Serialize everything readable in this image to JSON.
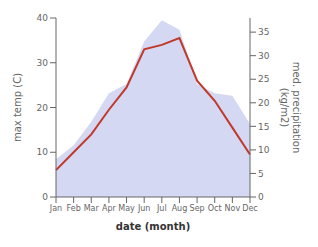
{
  "chart_data": {
    "type": "line",
    "categories": [
      "Jan",
      "Feb",
      "Mar",
      "Apr",
      "May",
      "Jun",
      "Jul",
      "Aug",
      "Sep",
      "Oct",
      "Nov",
      "Dec"
    ],
    "series": [
      {
        "type": "area",
        "color": "#b0b8e8",
        "axis": "y2",
        "values": [
          8.0,
          11.0,
          16.0,
          22.0,
          24.0,
          33.0,
          37.5,
          35.5,
          24.0,
          22.0,
          21.5,
          15.5
        ]
      },
      {
        "type": "line",
        "color": "#c0392b",
        "values": [
          6.0,
          10.0,
          14.0,
          19.5,
          24.5,
          33.0,
          34.0,
          35.5,
          26.0,
          21.5,
          15.5,
          9.5
        ]
      }
    ],
    "xlabel": "date (month)",
    "ylabel": "max temp (C)",
    "y2label": "med. precipitation\n(kg/m2)",
    "ylim": [
      0,
      40
    ],
    "yticks": [
      0,
      10,
      20,
      30,
      40
    ],
    "y2lim": [
      0,
      38
    ],
    "y2ticks": [
      0,
      5,
      10,
      15,
      20,
      25,
      30,
      35
    ],
    "grid": false
  }
}
